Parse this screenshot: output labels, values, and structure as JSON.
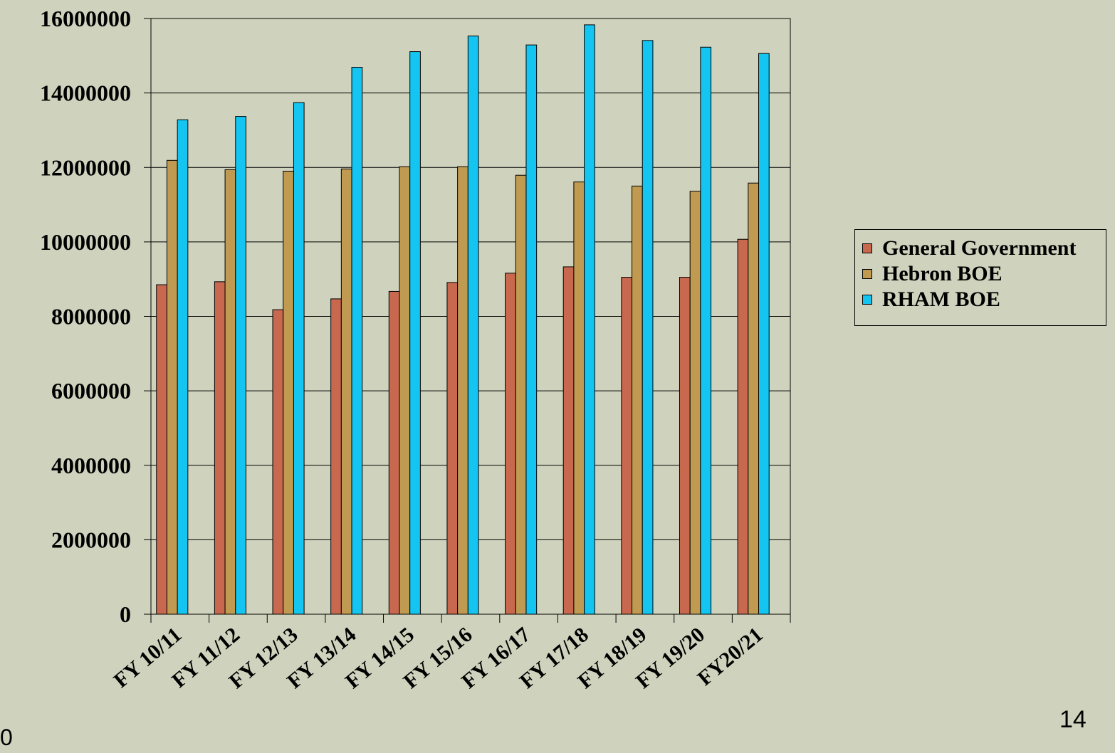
{
  "chart_data": {
    "type": "bar",
    "categories": [
      "FY 10/11",
      "FY 11/12",
      "FY 12/13",
      "FY 13/14",
      "FY 14/15",
      "FY 15/16",
      "FY 16/17",
      "FY 17/18",
      "FY 18/19",
      "FY 19/20",
      "FY20/21"
    ],
    "series": [
      {
        "name": "General Government",
        "color": "#c8694f",
        "values": [
          8850000,
          8930000,
          8180000,
          8470000,
          8670000,
          8910000,
          9160000,
          9330000,
          9050000,
          9050000,
          10070000
        ]
      },
      {
        "name": "Hebron BOE",
        "color": "#c09a50",
        "values": [
          12190000,
          11940000,
          11900000,
          11960000,
          12020000,
          12020000,
          11790000,
          11610000,
          11500000,
          11360000,
          11580000
        ]
      },
      {
        "name": "RHAM BOE",
        "color": "#13c5f0",
        "values": [
          13280000,
          13370000,
          13740000,
          14690000,
          15110000,
          15530000,
          15290000,
          15830000,
          15410000,
          15230000,
          15060000
        ]
      }
    ],
    "yticks": [
      "0",
      "2000000",
      "4000000",
      "6000000",
      "8000000",
      "10000000",
      "12000000",
      "14000000",
      "16000000"
    ],
    "ylim": [
      0,
      16000000
    ],
    "grid": true,
    "legend_position": "right"
  },
  "footer": {
    "left_text": "0",
    "page_number": "14"
  }
}
